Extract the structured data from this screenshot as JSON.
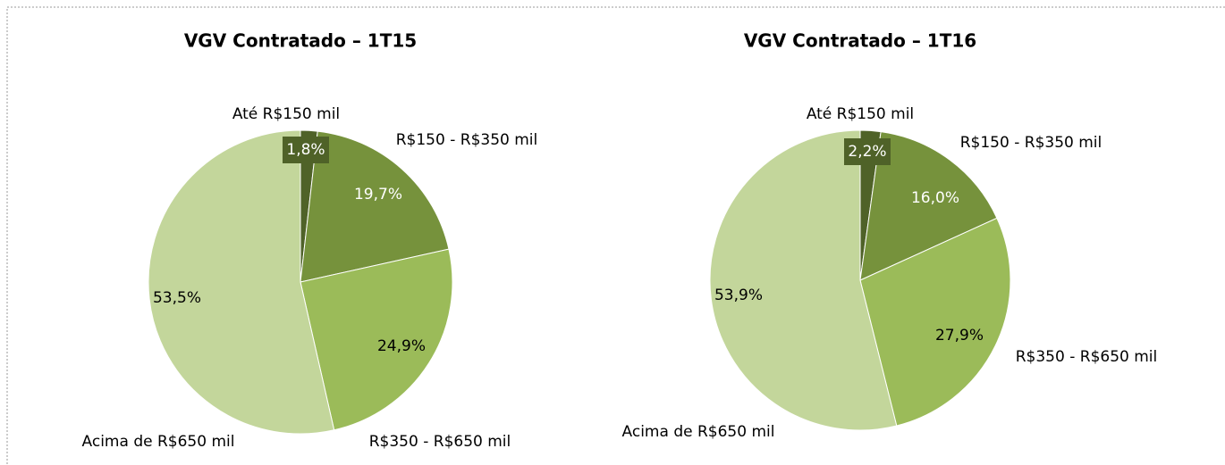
{
  "chart_data": [
    {
      "type": "pie",
      "title": "VGV Contratado – 1T15",
      "categories": [
        "Até R$150 mil",
        "R$150 - R$350 mil",
        "R$350 - R$650 mil",
        "Acima de R$650 mil"
      ],
      "values": [
        1.8,
        19.7,
        24.9,
        53.5
      ],
      "value_labels": [
        "1,8%",
        "19,7%",
        "24,9%",
        "53,5%"
      ],
      "colors": [
        "#4f6228",
        "#76923c",
        "#9bbb59",
        "#c3d69b"
      ]
    },
    {
      "type": "pie",
      "title": "VGV Contratado – 1T16",
      "categories": [
        "Até R$150 mil",
        "R$150 - R$350 mil",
        "R$350 - R$650 mil",
        "Acima de R$650 mil"
      ],
      "values": [
        2.2,
        16.0,
        27.9,
        53.9
      ],
      "value_labels": [
        "2,2%",
        "16,0%",
        "27,9%",
        "53,9%"
      ],
      "colors": [
        "#4f6228",
        "#76923c",
        "#9bbb59",
        "#c3d69b"
      ]
    }
  ]
}
